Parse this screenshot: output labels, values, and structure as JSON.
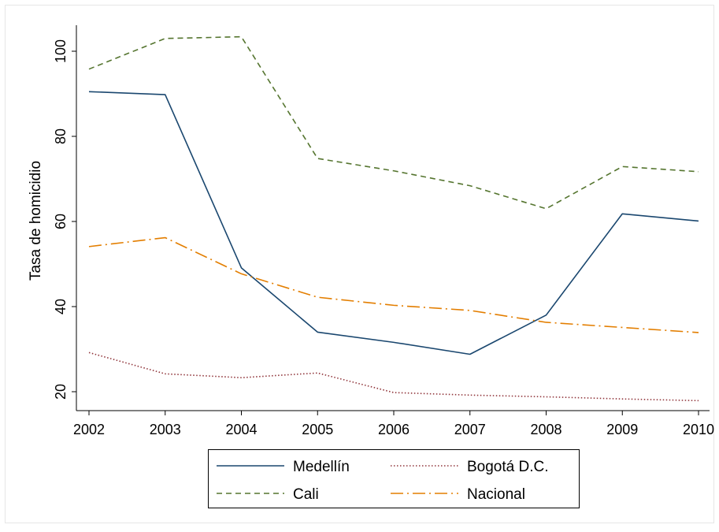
{
  "chart_data": {
    "type": "line",
    "title": "",
    "xlabel": "",
    "ylabel": "Tasa de homicidio",
    "x": [
      2002,
      2003,
      2004,
      2005,
      2006,
      2007,
      2008,
      2009,
      2010
    ],
    "xlim": [
      2002,
      2010
    ],
    "ylim": [
      18,
      106
    ],
    "yticks": [
      20,
      40,
      60,
      80,
      100
    ],
    "grid": false,
    "legend_position": "bottom",
    "series": [
      {
        "name": "Medellín",
        "color": "#1a476f",
        "dash": "solid",
        "values": [
          90.5,
          89.8,
          49.1,
          34.0,
          31.6,
          28.8,
          38.0,
          61.8,
          60.1
        ]
      },
      {
        "name": "Bogotá D.C.",
        "color": "#90353b",
        "dash": "dot",
        "values": [
          29.2,
          24.2,
          23.3,
          24.4,
          19.8,
          19.2,
          18.8,
          18.3,
          17.9
        ]
      },
      {
        "name": "Cali",
        "color": "#55752f",
        "dash": "dash",
        "values": [
          95.8,
          103.0,
          103.4,
          74.8,
          71.9,
          68.4,
          63.0,
          72.9,
          71.7
        ]
      },
      {
        "name": "Nacional",
        "color": "#e37e00",
        "dash": "longdash",
        "values": [
          54.1,
          56.2,
          47.7,
          42.2,
          40.3,
          39.1,
          36.3,
          35.1,
          33.9
        ]
      }
    ]
  }
}
